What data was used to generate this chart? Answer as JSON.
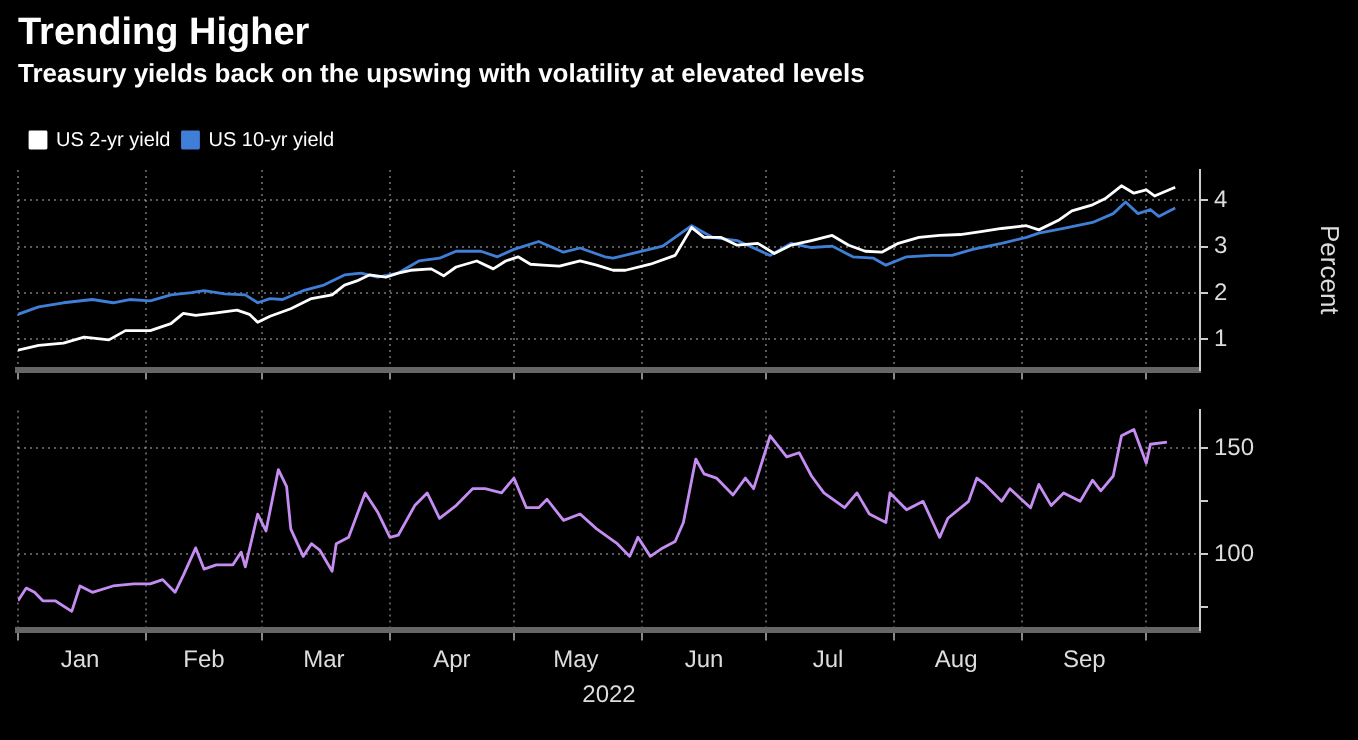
{
  "chart_data": [
    {
      "type": "line",
      "title": "Trending Higher",
      "subtitle": "Treasury yields back on the upswing with volatility at elevated levels",
      "ylabel": "Percent",
      "xlim": [
        "2022-01-01",
        "2022-10-14"
      ],
      "xticks": [
        {
          "value": "2022-01-01",
          "label": null
        },
        {
          "value": "2022-02-01",
          "label": null
        },
        {
          "value": "2022-03-01",
          "label": null
        },
        {
          "value": "2022-04-01",
          "label": null
        },
        {
          "value": "2022-05-01",
          "label": null
        },
        {
          "value": "2022-06-01",
          "label": null
        },
        {
          "value": "2022-07-01",
          "label": null
        },
        {
          "value": "2022-08-01",
          "label": null
        },
        {
          "value": "2022-09-01",
          "label": null
        },
        {
          "value": "2022-10-01",
          "label": null
        }
      ],
      "ylim": [
        0.35,
        4.65
      ],
      "yticks": [
        1,
        2,
        3,
        4
      ],
      "tick_labels": "y",
      "grid": true,
      "legend": "top left",
      "series": [
        {
          "name": "US 2-yr yield",
          "color": "#ffffff",
          "x": [
            "2022-01-01",
            "2022-01-06",
            "2022-01-12",
            "2022-01-17",
            "2022-01-23",
            "2022-01-27",
            "2022-02-02",
            "2022-02-07",
            "2022-02-10",
            "2022-02-13",
            "2022-02-18",
            "2022-02-23",
            "2022-02-26",
            "2022-02-28",
            "2022-03-03",
            "2022-03-08",
            "2022-03-13",
            "2022-03-18",
            "2022-03-21",
            "2022-03-24",
            "2022-03-27",
            "2022-03-31",
            "2022-04-03",
            "2022-04-06",
            "2022-04-11",
            "2022-04-14",
            "2022-04-17",
            "2022-04-22",
            "2022-04-26",
            "2022-04-29",
            "2022-05-02",
            "2022-05-05",
            "2022-05-08",
            "2022-05-12",
            "2022-05-17",
            "2022-05-21",
            "2022-05-25",
            "2022-05-28",
            "2022-06-03",
            "2022-06-09",
            "2022-06-13",
            "2022-06-16",
            "2022-06-20",
            "2022-06-24",
            "2022-06-29",
            "2022-07-03",
            "2022-07-07",
            "2022-07-12",
            "2022-07-17",
            "2022-07-21",
            "2022-07-25",
            "2022-07-29",
            "2022-08-02",
            "2022-08-07",
            "2022-08-12",
            "2022-08-17",
            "2022-08-22",
            "2022-08-27",
            "2022-09-02",
            "2022-09-05",
            "2022-09-10",
            "2022-09-13",
            "2022-09-18",
            "2022-09-21",
            "2022-09-25",
            "2022-09-28",
            "2022-10-01",
            "2022-10-03",
            "2022-10-08"
          ],
          "values": [
            0.77,
            0.87,
            0.92,
            1.05,
            0.99,
            1.19,
            1.19,
            1.34,
            1.56,
            1.52,
            1.57,
            1.63,
            1.54,
            1.37,
            1.5,
            1.66,
            1.88,
            1.96,
            2.17,
            2.26,
            2.39,
            2.34,
            2.43,
            2.49,
            2.52,
            2.37,
            2.56,
            2.69,
            2.52,
            2.69,
            2.78,
            2.62,
            2.6,
            2.58,
            2.69,
            2.6,
            2.49,
            2.49,
            2.62,
            2.81,
            3.41,
            3.2,
            3.2,
            3.03,
            3.07,
            2.85,
            3.03,
            3.13,
            3.24,
            3.03,
            2.9,
            2.88,
            3.07,
            3.2,
            3.24,
            3.26,
            3.32,
            3.39,
            3.45,
            3.36,
            3.58,
            3.77,
            3.9,
            4.03,
            4.31,
            4.15,
            4.22,
            4.09,
            4.28
          ]
        },
        {
          "name": "US 10-yr yield",
          "color": "#3f7fd8",
          "x": [
            "2022-01-01",
            "2022-01-06",
            "2022-01-12",
            "2022-01-19",
            "2022-01-24",
            "2022-01-28",
            "2022-02-02",
            "2022-02-07",
            "2022-02-12",
            "2022-02-15",
            "2022-02-20",
            "2022-02-25",
            "2022-02-28",
            "2022-03-03",
            "2022-03-06",
            "2022-03-11",
            "2022-03-16",
            "2022-03-21",
            "2022-03-25",
            "2022-03-29",
            "2022-04-03",
            "2022-04-08",
            "2022-04-13",
            "2022-04-17",
            "2022-04-23",
            "2022-04-27",
            "2022-05-01",
            "2022-05-07",
            "2022-05-13",
            "2022-05-17",
            "2022-05-23",
            "2022-05-25",
            "2022-05-31",
            "2022-06-06",
            "2022-06-13",
            "2022-06-18",
            "2022-06-24",
            "2022-07-02",
            "2022-07-07",
            "2022-07-12",
            "2022-07-17",
            "2022-07-22",
            "2022-07-27",
            "2022-07-30",
            "2022-08-04",
            "2022-08-10",
            "2022-08-15",
            "2022-08-20",
            "2022-08-27",
            "2022-09-02",
            "2022-09-05",
            "2022-09-11",
            "2022-09-18",
            "2022-09-23",
            "2022-09-26",
            "2022-09-29",
            "2022-10-02",
            "2022-10-04",
            "2022-10-08"
          ],
          "values": [
            1.54,
            1.7,
            1.79,
            1.86,
            1.79,
            1.86,
            1.83,
            1.96,
            2.01,
            2.05,
            1.98,
            1.96,
            1.79,
            1.88,
            1.86,
            2.05,
            2.17,
            2.39,
            2.43,
            2.34,
            2.43,
            2.69,
            2.75,
            2.9,
            2.9,
            2.78,
            2.94,
            3.11,
            2.88,
            2.97,
            2.78,
            2.75,
            2.88,
            3.01,
            3.45,
            3.2,
            3.13,
            2.81,
            3.07,
            2.98,
            3.01,
            2.78,
            2.75,
            2.6,
            2.78,
            2.81,
            2.81,
            2.94,
            3.07,
            3.2,
            3.29,
            3.39,
            3.52,
            3.71,
            3.96,
            3.71,
            3.8,
            3.65,
            3.83
          ]
        }
      ]
    },
    {
      "type": "line",
      "xlabel": "2022",
      "xlim": [
        "2022-01-01",
        "2022-10-14"
      ],
      "xticks": [
        {
          "value": "2022-01-01",
          "label": null
        },
        {
          "value": "2022-01-16",
          "label": "Jan"
        },
        {
          "value": "2022-02-01",
          "label": null
        },
        {
          "value": "2022-02-15",
          "label": "Feb"
        },
        {
          "value": "2022-03-01",
          "label": null
        },
        {
          "value": "2022-03-16",
          "label": "Mar"
        },
        {
          "value": "2022-04-01",
          "label": null
        },
        {
          "value": "2022-04-16",
          "label": "Apr"
        },
        {
          "value": "2022-05-01",
          "label": null
        },
        {
          "value": "2022-05-16",
          "label": "May"
        },
        {
          "value": "2022-06-01",
          "label": null
        },
        {
          "value": "2022-06-16",
          "label": "Jun"
        },
        {
          "value": "2022-07-01",
          "label": null
        },
        {
          "value": "2022-07-16",
          "label": "Jul"
        },
        {
          "value": "2022-08-01",
          "label": null
        },
        {
          "value": "2022-08-16",
          "label": "Aug"
        },
        {
          "value": "2022-09-01",
          "label": null
        },
        {
          "value": "2022-09-16",
          "label": "Sep"
        },
        {
          "value": "2022-10-01",
          "label": null
        }
      ],
      "ylim": [
        64,
        168
      ],
      "yticks": [
        {
          "value": 75,
          "label": null
        },
        100,
        {
          "value": 125,
          "label": null
        },
        150
      ],
      "grid": true,
      "series": [
        {
          "color": "#c58cf2",
          "x": [
            "2022-01-01",
            "2022-01-03",
            "2022-01-05",
            "2022-01-07",
            "2022-01-10",
            "2022-01-14",
            "2022-01-16",
            "2022-01-19",
            "2022-01-24",
            "2022-01-29",
            "2022-02-02",
            "2022-02-05",
            "2022-02-08",
            "2022-02-10",
            "2022-02-13",
            "2022-02-15",
            "2022-02-18",
            "2022-02-22",
            "2022-02-24",
            "2022-02-25",
            "2022-02-28",
            "2022-03-02",
            "2022-03-05",
            "2022-03-07",
            "2022-03-08",
            "2022-03-11",
            "2022-03-13",
            "2022-03-15",
            "2022-03-18",
            "2022-03-19",
            "2022-03-22",
            "2022-03-26",
            "2022-03-29",
            "2022-04-01",
            "2022-04-03",
            "2022-04-07",
            "2022-04-10",
            "2022-04-13",
            "2022-04-17",
            "2022-04-21",
            "2022-04-24",
            "2022-04-28",
            "2022-05-01",
            "2022-05-04",
            "2022-05-07",
            "2022-05-09",
            "2022-05-13",
            "2022-05-17",
            "2022-05-21",
            "2022-05-26",
            "2022-05-29",
            "2022-05-31",
            "2022-06-03",
            "2022-06-06",
            "2022-06-09",
            "2022-06-11",
            "2022-06-14",
            "2022-06-16",
            "2022-06-19",
            "2022-06-23",
            "2022-06-26",
            "2022-06-28",
            "2022-07-02",
            "2022-07-06",
            "2022-07-09",
            "2022-07-12",
            "2022-07-15",
            "2022-07-20",
            "2022-07-23",
            "2022-07-26",
            "2022-07-30",
            "2022-07-31",
            "2022-08-04",
            "2022-08-08",
            "2022-08-12",
            "2022-08-14",
            "2022-08-19",
            "2022-08-21",
            "2022-08-23",
            "2022-08-27",
            "2022-08-29",
            "2022-09-03",
            "2022-09-05",
            "2022-09-08",
            "2022-09-11",
            "2022-09-15",
            "2022-09-18",
            "2022-09-20",
            "2022-09-23",
            "2022-09-25",
            "2022-09-28",
            "2022-10-01",
            "2022-10-02",
            "2022-10-06"
          ],
          "values": [
            78,
            84,
            82,
            78,
            78,
            73,
            85,
            82,
            85,
            86,
            86,
            88,
            82,
            90,
            103,
            93,
            95,
            95,
            101,
            94,
            119,
            111,
            140,
            132,
            112,
            99,
            105,
            102,
            92,
            105,
            108,
            129,
            120,
            108,
            109,
            123,
            129,
            117,
            123,
            131,
            131,
            129,
            136,
            122,
            122,
            126,
            116,
            119,
            112,
            105,
            99,
            108,
            99,
            103,
            106,
            115,
            145,
            138,
            136,
            128,
            136,
            131,
            156,
            146,
            148,
            137,
            129,
            122,
            129,
            119,
            115,
            129,
            121,
            125,
            108,
            117,
            125,
            136,
            133,
            125,
            131,
            122,
            133,
            123,
            129,
            125,
            135,
            130,
            137,
            156,
            159,
            143,
            152,
            153
          ]
        }
      ]
    }
  ]
}
